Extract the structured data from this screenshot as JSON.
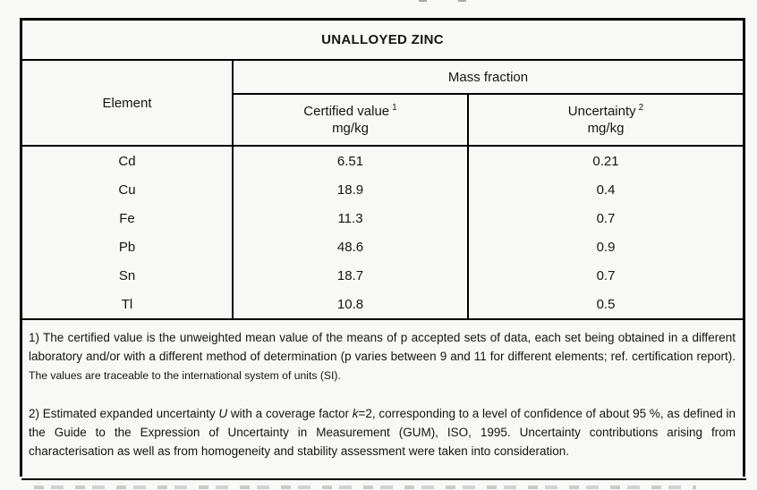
{
  "page": {
    "background": "#f8f8f7",
    "border_color": "#000000",
    "text_color": "#141414"
  },
  "table": {
    "title": "UNALLOYED ZINC",
    "header": {
      "element_label": "Element",
      "mass_fraction_label": "Mass fraction",
      "certified": {
        "label": "Certified value",
        "footnote_ref": "1",
        "unit": "mg/kg"
      },
      "uncertainty": {
        "label": "Uncertainty",
        "footnote_ref": "2",
        "unit": "mg/kg"
      }
    },
    "rows": [
      {
        "element": "Cd",
        "certified_value": "6.51",
        "uncertainty": "0.21"
      },
      {
        "element": "Cu",
        "certified_value": "18.9",
        "uncertainty": "0.4"
      },
      {
        "element": "Fe",
        "certified_value": "11.3",
        "uncertainty": "0.7"
      },
      {
        "element": "Pb",
        "certified_value": "48.6",
        "uncertainty": "0.9"
      },
      {
        "element": "Sn",
        "certified_value": "18.7",
        "uncertainty": "0.7"
      },
      {
        "element": "Tl",
        "certified_value": "10.8",
        "uncertainty": "0.5"
      }
    ],
    "footnotes": {
      "note1": {
        "segments": [
          {
            "text": "1) The certified value is the unweighted mean value of the means of p accepted sets of data, each set being obtained in a different laboratory and/or with a different method of determination (p varies between 9 and 11 for different elements; ref. certification report). ",
            "style": "normal"
          },
          {
            "text": "The values are traceable to the international system of units (SI).",
            "style": "small"
          }
        ]
      },
      "note2": {
        "segments": [
          {
            "text": "2) Estimated expanded uncertainty ",
            "style": "normal"
          },
          {
            "text": "U",
            "style": "italic"
          },
          {
            "text": " with a coverage factor ",
            "style": "normal"
          },
          {
            "text": "k",
            "style": "italic"
          },
          {
            "text": "=2, corresponding to a level of confidence of about 95 %, as defined in the Guide to the Expression of Uncertainty in Measurement (GUM), ISO, 1995. Uncertainty contributions arising from characterisation as well as from homogeneity and stability assessment were taken into consideration.",
            "style": "normal"
          }
        ]
      }
    }
  }
}
